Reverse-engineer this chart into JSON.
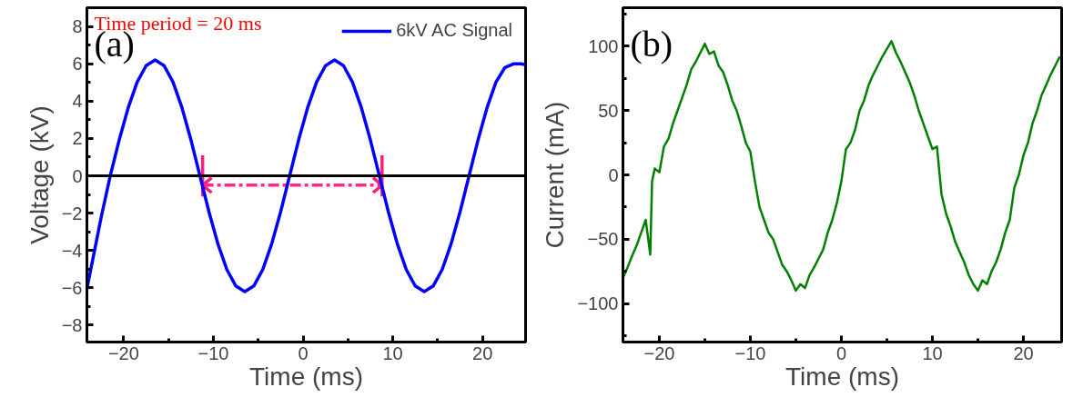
{
  "chart_data": [
    {
      "type": "line",
      "xlabel": "Time (ms)",
      "ylabel": "Voltage (kV)",
      "xlim": [
        -24.1,
        24.8
      ],
      "ylim": [
        -8.9,
        9.0
      ],
      "xticks": [
        -20,
        -10,
        0,
        10,
        20
      ],
      "yticks": [
        -8,
        -6,
        -4,
        -2,
        0,
        2,
        4,
        6,
        8
      ],
      "grid": false,
      "legend": "top right",
      "line_style": "solid",
      "marker": "none",
      "annotations": [
        "(a)",
        "Time period = 20 ms"
      ],
      "ref_lines": [
        {
          "axis": "y",
          "value": 0,
          "color": "#000000"
        }
      ],
      "series": [
        {
          "color": "#ff1e78",
          "x": [
            -11.2,
            -11.2,
            null,
            8.8,
            8.8,
            null,
            -10.2,
            -11.2,
            -10.2,
            null,
            7.8,
            8.8,
            7.8
          ],
          "values": [
            1.1,
            -1.1,
            null,
            1.1,
            -1.1,
            null,
            -0.1,
            -0.5,
            -0.9,
            null,
            -0.1,
            -0.5,
            -0.9
          ]
        },
        {
          "color": "#ff2a88",
          "line_style": "dashed",
          "x": [
            -11.2,
            8.8
          ],
          "values": [
            -0.5,
            -0.5
          ]
        },
        {
          "name": "6kV AC Signal",
          "color": "#0000ff",
          "x": [
            -24.1,
            -23.5,
            -22.5,
            -21.5,
            -20.5,
            -19.5,
            -18.5,
            -17.5,
            -16.5,
            -15.5,
            -14.5,
            -13.5,
            -12.5,
            -11.5,
            -10.5,
            -9.5,
            -8.5,
            -7.5,
            -6.5,
            -5.5,
            -4.5,
            -3.5,
            -2.5,
            -1.5,
            -0.5,
            0.5,
            1.5,
            2.5,
            3.5,
            4.5,
            5.5,
            6.5,
            7.5,
            8.5,
            9.5,
            10.5,
            11.5,
            12.5,
            13.5,
            14.5,
            15.5,
            16.5,
            17.5,
            18.5,
            19.5,
            20.5,
            21.5,
            22.5,
            23.5,
            24.3,
            24.8
          ],
          "values": [
            -6.05,
            -4.6,
            -2.2,
            0,
            1.92,
            3.64,
            5.02,
            5.9,
            6.2,
            5.9,
            5.02,
            3.64,
            1.92,
            0,
            -1.92,
            -3.64,
            -5.02,
            -5.9,
            -6.2,
            -5.9,
            -5.02,
            -3.64,
            -1.92,
            0,
            1.92,
            3.64,
            5.02,
            5.9,
            6.2,
            5.9,
            5.02,
            3.64,
            1.92,
            0,
            -1.92,
            -3.64,
            -5.02,
            -5.9,
            -6.2,
            -5.9,
            -5.02,
            -3.64,
            -1.92,
            0,
            1.92,
            3.64,
            5.02,
            5.8,
            6.0,
            6.0,
            5.95
          ]
        }
      ]
    },
    {
      "type": "line",
      "xlabel": "Time (ms)",
      "ylabel": "Current (mA)",
      "xlim": [
        -24.0,
        24.2
      ],
      "ylim": [
        -130,
        130
      ],
      "xticks": [
        -20,
        -10,
        0,
        10,
        20
      ],
      "yticks": [
        -100,
        -50,
        0,
        50,
        100
      ],
      "grid": false,
      "line_style": "solid",
      "marker": "none",
      "annotations": [
        "(b)"
      ],
      "series": [
        {
          "color": "#008000",
          "x": [
            -24,
            -23.5,
            -23,
            -22.5,
            -22,
            -21.5,
            -21,
            -20.8,
            -20.5,
            -20,
            -19.5,
            -19,
            -18.5,
            -18,
            -17.5,
            -17,
            -16.5,
            -16,
            -15.5,
            -15,
            -14.5,
            -14,
            -13.5,
            -13,
            -12.5,
            -12,
            -11.5,
            -11,
            -10.5,
            -10,
            -9.5,
            -9,
            -8.5,
            -8,
            -7.5,
            -7,
            -6.5,
            -6,
            -5.5,
            -5,
            -4.5,
            -4,
            -3.5,
            -3,
            -2.5,
            -2,
            -1.5,
            -1,
            -0.5,
            0,
            0.5,
            1,
            1.5,
            2,
            2.5,
            3,
            3.5,
            4,
            4.5,
            5,
            5.5,
            6,
            6.5,
            7,
            7.5,
            8,
            8.5,
            9,
            9.5,
            10,
            10.5,
            11,
            11.5,
            12,
            12.5,
            13,
            13.5,
            14,
            14.5,
            15,
            15.5,
            16,
            16.5,
            17,
            17.5,
            18,
            18.5,
            19,
            19.5,
            20,
            20.5,
            21,
            21.5,
            22,
            22.5,
            23,
            23.5,
            24
          ],
          "values": [
            -80,
            -72,
            -63,
            -55,
            -45,
            -35,
            -62,
            -5,
            5,
            2,
            22,
            28,
            40,
            50,
            60,
            70,
            82,
            88,
            95,
            102,
            94,
            96,
            85,
            80,
            70,
            58,
            50,
            38,
            25,
            18,
            -5,
            -25,
            -35,
            -45,
            -50,
            -60,
            -70,
            -75,
            -82,
            -90,
            -85,
            -88,
            -78,
            -72,
            -65,
            -58,
            -45,
            -35,
            -22,
            -5,
            20,
            25,
            35,
            50,
            58,
            70,
            78,
            85,
            92,
            98,
            104,
            95,
            88,
            80,
            72,
            62,
            50,
            40,
            30,
            20,
            22,
            -15,
            -30,
            -40,
            -52,
            -60,
            -68,
            -78,
            -85,
            -90,
            -82,
            -85,
            -75,
            -68,
            -58,
            -45,
            -35,
            -10,
            0,
            15,
            25,
            40,
            50,
            62,
            70,
            78,
            85,
            92
          ]
        }
      ]
    }
  ]
}
